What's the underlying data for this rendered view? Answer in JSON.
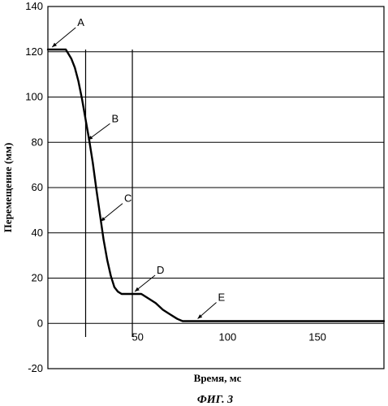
{
  "chart_data": {
    "type": "line",
    "xlabel": "Время, мс",
    "ylabel": "Перемещение (мм)",
    "caption": "ФИГ. 3",
    "xlim": [
      0,
      187
    ],
    "ylim": [
      -20,
      140
    ],
    "y_ticks": [
      "140",
      "120",
      "100",
      "80",
      "60",
      "40",
      "20",
      "0",
      "-20"
    ],
    "x_ticks": [
      "50",
      "100",
      "150"
    ],
    "grid": "horizontal",
    "series": [
      {
        "x": [
          0,
          5,
          10,
          13,
          15,
          17,
          19,
          21,
          23,
          25,
          27,
          29,
          31,
          33,
          35,
          37,
          39,
          41,
          43,
          45,
          48,
          52,
          56,
          60,
          64,
          68,
          72,
          75,
          78,
          85,
          100,
          150,
          187
        ],
        "y": [
          121,
          121,
          121,
          117,
          113,
          107,
          99,
          90,
          81,
          71,
          59,
          48,
          37,
          28,
          21,
          16,
          14,
          13,
          13,
          13,
          13,
          13,
          11,
          9,
          6,
          4,
          2,
          1,
          1,
          1,
          1,
          1,
          1
        ]
      }
    ],
    "vertical_markers": [
      {
        "x": 21
      },
      {
        "x": 47
      }
    ],
    "annotations": [
      {
        "label": "A",
        "x": 1,
        "y": 121
      },
      {
        "label": "B",
        "x": 21,
        "y": 80
      },
      {
        "label": "C",
        "x": 28,
        "y": 44
      },
      {
        "label": "D",
        "x": 47,
        "y": 13
      },
      {
        "label": "E",
        "x": 82,
        "y": 1
      }
    ]
  }
}
